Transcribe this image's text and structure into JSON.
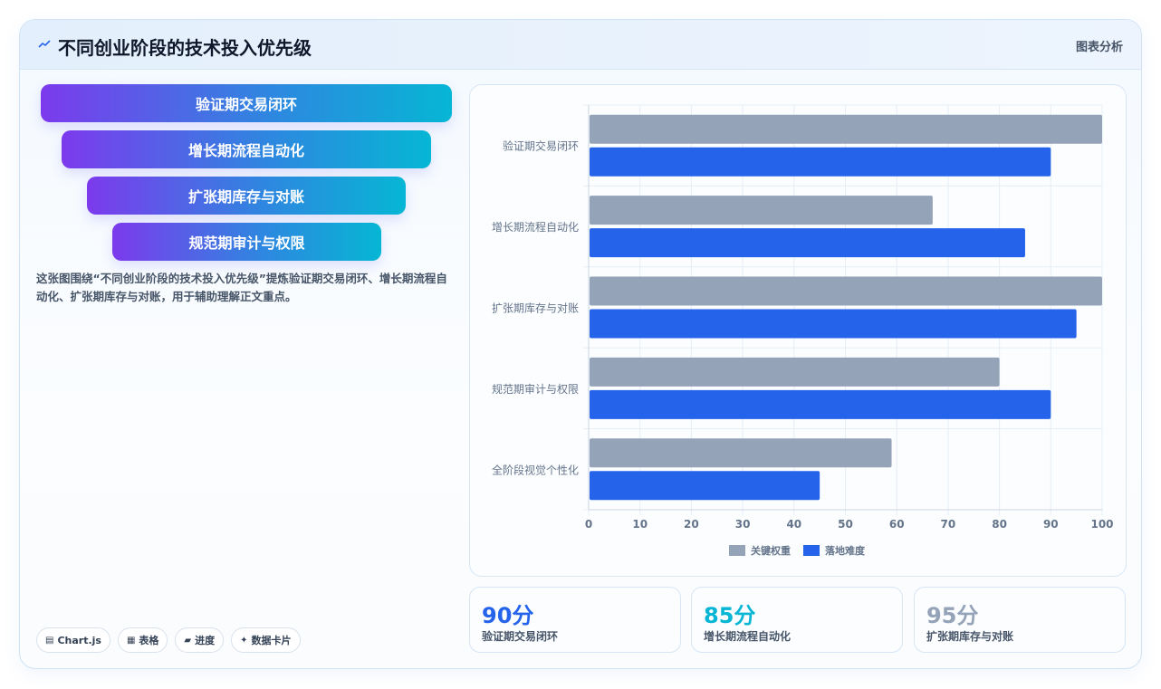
{
  "header": {
    "title": "不同创业阶段的技术投入优先级",
    "tag": "图表分析",
    "accent": "#2563eb"
  },
  "funnel": [
    {
      "label": "验证期交易闭环"
    },
    {
      "label": "增长期流程自动化"
    },
    {
      "label": "扩张期库存与对账"
    },
    {
      "label": "规范期审计与权限"
    }
  ],
  "description": "这张图围绕“不同创业阶段的技术投入优先级”提炼验证期交易闭环、增长期流程自动化、扩张期库存与对账，用于辅助理解正文重点。",
  "chips": [
    {
      "icon": "chart-icon",
      "glyph": "▤",
      "label": "Chart.js"
    },
    {
      "icon": "table-icon",
      "glyph": "▦",
      "label": "表格"
    },
    {
      "icon": "progress-icon",
      "glyph": "▰",
      "label": "进度"
    },
    {
      "icon": "sparkle-icon",
      "glyph": "✦",
      "label": "数据卡片"
    }
  ],
  "chart_data": {
    "type": "bar",
    "orientation": "horizontal",
    "categories": [
      "验证期交易闭环",
      "增长期流程自动化",
      "扩张期库存与对账",
      "规范期审计与权限",
      "全阶段视觉个性化"
    ],
    "series": [
      {
        "name": "关键权重",
        "color": "#94a3b8",
        "values": [
          100,
          67,
          100,
          80,
          59
        ]
      },
      {
        "name": "落地难度",
        "color": "#2563eb",
        "values": [
          90,
          85,
          95,
          90,
          45
        ]
      }
    ],
    "xlim": [
      0,
      100
    ],
    "xticks": [
      0,
      10,
      20,
      30,
      40,
      50,
      60,
      70,
      80,
      90,
      100
    ],
    "grid": true,
    "legend": "bottom"
  },
  "stats": [
    {
      "value": "90分",
      "label": "验证期交易闭环",
      "color": "#2563eb"
    },
    {
      "value": "85分",
      "label": "增长期流程自动化",
      "color": "#06b6d4"
    },
    {
      "value": "95分",
      "label": "扩张期库存与对账",
      "color": "#94a3b8"
    }
  ]
}
